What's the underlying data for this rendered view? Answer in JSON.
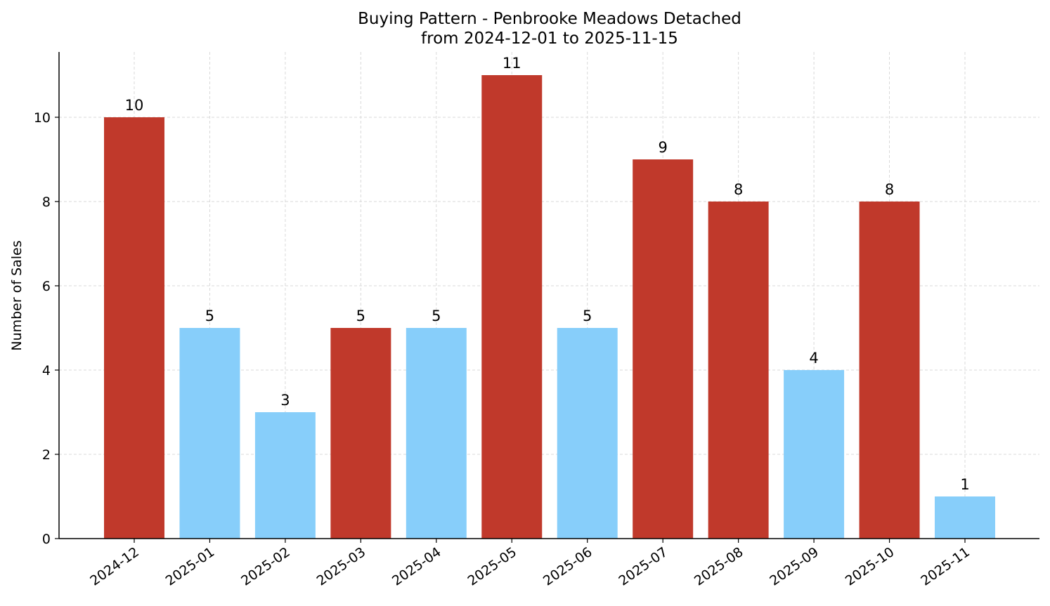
{
  "chart_data": {
    "type": "bar",
    "title_line1": "Buying Pattern - Penbrooke Meadows Detached",
    "title_line2": "from 2024-12-01 to 2025-11-15",
    "xlabel": "",
    "ylabel": "Number of Sales",
    "categories": [
      "2024-12",
      "2025-01",
      "2025-02",
      "2025-03",
      "2025-04",
      "2025-05",
      "2025-06",
      "2025-07",
      "2025-08",
      "2025-09",
      "2025-10",
      "2025-11"
    ],
    "values": [
      10,
      5,
      3,
      5,
      5,
      11,
      5,
      9,
      8,
      4,
      8,
      1
    ],
    "colors": [
      "#c0392b",
      "#87cefa",
      "#87cefa",
      "#c0392b",
      "#87cefa",
      "#c0392b",
      "#87cefa",
      "#c0392b",
      "#c0392b",
      "#87cefa",
      "#c0392b",
      "#87cefa"
    ],
    "ylim": [
      0,
      11.55
    ],
    "yticks": [
      0,
      2,
      4,
      6,
      8,
      10
    ],
    "grid": true,
    "legend": "none"
  }
}
